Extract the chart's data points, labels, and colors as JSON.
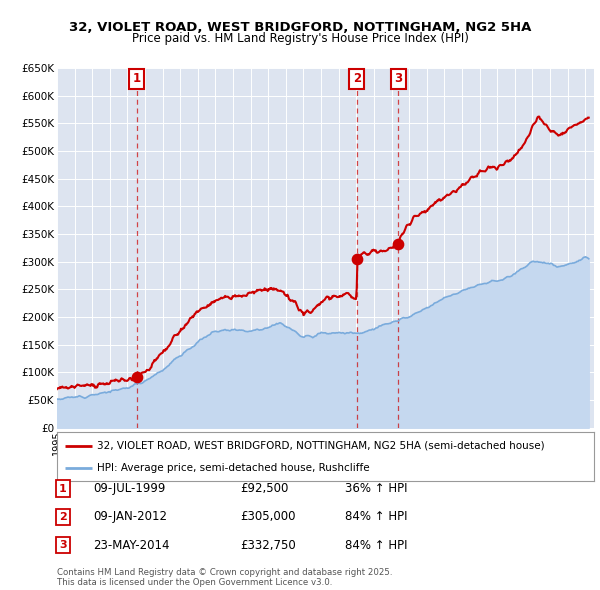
{
  "title": "32, VIOLET ROAD, WEST BRIDGFORD, NOTTINGHAM, NG2 5HA",
  "subtitle": "Price paid vs. HM Land Registry's House Price Index (HPI)",
  "background_color": "#dde4f0",
  "ylim": [
    0,
    650000
  ],
  "yticks": [
    0,
    50000,
    100000,
    150000,
    200000,
    250000,
    300000,
    350000,
    400000,
    450000,
    500000,
    550000,
    600000,
    650000
  ],
  "ytick_labels": [
    "£0",
    "£50K",
    "£100K",
    "£150K",
    "£200K",
    "£250K",
    "£300K",
    "£350K",
    "£400K",
    "£450K",
    "£500K",
    "£550K",
    "£600K",
    "£650K"
  ],
  "xlim_start": 1995,
  "xlim_end": 2025.5,
  "sales": [
    {
      "num": 1,
      "date": "09-JUL-1999",
      "price": 92500,
      "year": 1999.52,
      "pct": "36%",
      "dir": "↑"
    },
    {
      "num": 2,
      "date": "09-JAN-2012",
      "price": 305000,
      "year": 2012.03,
      "pct": "84%",
      "dir": "↑"
    },
    {
      "num": 3,
      "date": "23-MAY-2014",
      "price": 332750,
      "year": 2014.39,
      "pct": "84%",
      "dir": "↑"
    }
  ],
  "legend_line1": "32, VIOLET ROAD, WEST BRIDGFORD, NOTTINGHAM, NG2 5HA (semi-detached house)",
  "legend_line2": "HPI: Average price, semi-detached house, Rushcliffe",
  "footnote": "Contains HM Land Registry data © Crown copyright and database right 2025.\nThis data is licensed under the Open Government Licence v3.0.",
  "red_color": "#cc0000",
  "blue_color": "#7aabdc",
  "blue_fill": "#c5d8ef",
  "grid_color": "white",
  "title_fontsize": 9.5,
  "subtitle_fontsize": 8.5
}
